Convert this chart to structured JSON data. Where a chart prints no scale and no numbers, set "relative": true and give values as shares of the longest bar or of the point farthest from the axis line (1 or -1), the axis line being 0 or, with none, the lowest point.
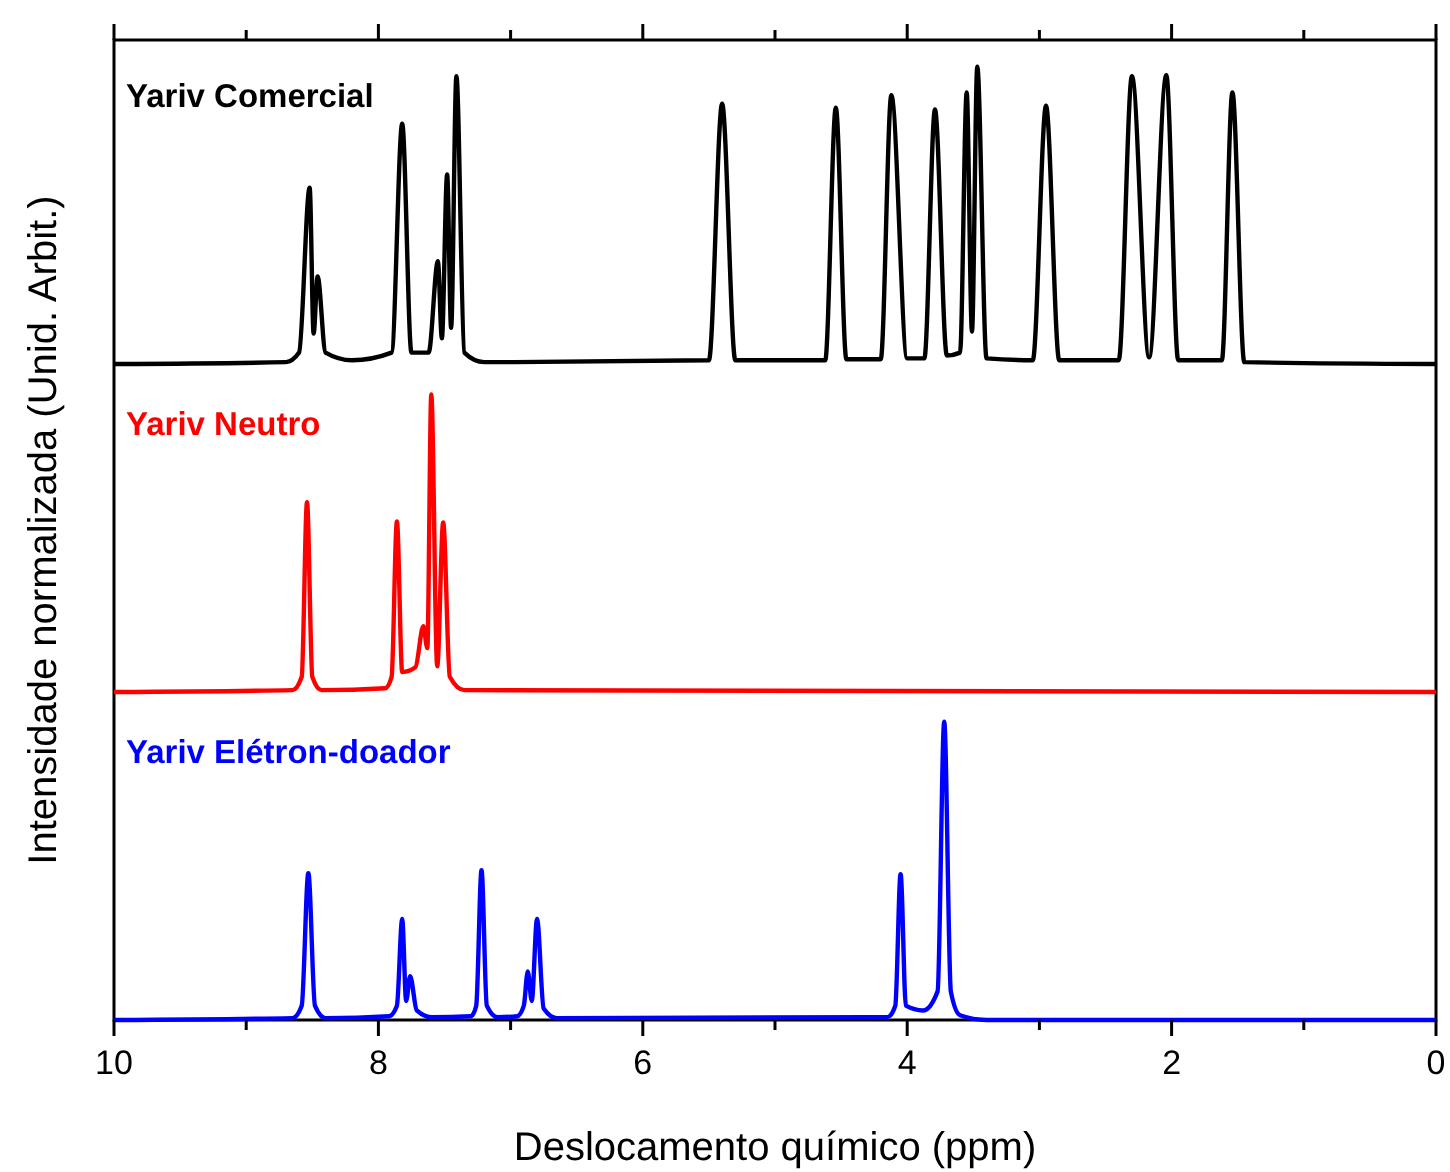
{
  "chart_data": {
    "type": "line",
    "relative": true,
    "xlabel": "Deslocamento químico (ppm)",
    "ylabel": "Intensidade normalizada (Unid. Arbit.)",
    "xlim": [
      10,
      0
    ],
    "xticks": [
      10,
      {
        "value": 9,
        "label": null
      },
      8,
      {
        "value": 7,
        "label": null
      },
      6,
      {
        "value": 5,
        "label": null
      },
      4,
      {
        "value": 3,
        "label": null
      },
      2,
      {
        "value": 1,
        "label": null
      },
      0
    ],
    "line_style": "solid",
    "marker": "none",
    "series": [
      {
        "name": "Yariv Comercial",
        "color": "#000000",
        "x": [
          10,
          8.7,
          8.6,
          8.52,
          8.49,
          8.46,
          8.4,
          8.2,
          7.9,
          7.82,
          7.75,
          7.62,
          7.55,
          7.52,
          7.48,
          7.45,
          7.41,
          7.35,
          7.2,
          5.5,
          5.4,
          5.3,
          4.62,
          4.54,
          4.46,
          4.2,
          4.12,
          4.0,
          3.87,
          3.79,
          3.7,
          3.6,
          3.55,
          3.51,
          3.47,
          3.4,
          3.05,
          2.95,
          2.85,
          2.4,
          2.3,
          2.17,
          2.04,
          1.95,
          1.62,
          1.54,
          1.45,
          0
        ],
        "values": [
          0.688,
          0.69,
          0.7,
          0.873,
          0.72,
          0.78,
          0.7,
          0.692,
          0.7,
          0.94,
          0.7,
          0.7,
          0.796,
          0.715,
          0.887,
          0.726,
          0.99,
          0.7,
          0.69,
          0.692,
          0.961,
          0.692,
          0.692,
          0.957,
          0.693,
          0.693,
          0.97,
          0.694,
          0.694,
          0.955,
          0.697,
          0.7,
          0.973,
          0.722,
          1.0,
          0.694,
          0.692,
          0.959,
          0.692,
          0.692,
          0.99,
          0.695,
          0.991,
          0.692,
          0.692,
          0.973,
          0.69,
          0.688
        ]
      },
      {
        "name": "Yariv Neutro",
        "color": "#ff0000",
        "x": [
          10,
          8.65,
          8.58,
          8.54,
          8.5,
          8.43,
          7.95,
          7.9,
          7.86,
          7.82,
          7.72,
          7.66,
          7.63,
          7.6,
          7.555,
          7.51,
          7.46,
          7.35,
          0
        ],
        "values": [
          0.344,
          0.346,
          0.36,
          0.543,
          0.36,
          0.346,
          0.348,
          0.36,
          0.523,
          0.365,
          0.37,
          0.413,
          0.39,
          0.656,
          0.371,
          0.522,
          0.36,
          0.346,
          0.344
        ]
      },
      {
        "name": "Yariv Elétron-doador",
        "color": "#0000ff",
        "x": [
          10,
          8.65,
          8.58,
          8.53,
          8.48,
          8.4,
          7.92,
          7.86,
          7.82,
          7.79,
          7.76,
          7.71,
          7.6,
          7.3,
          7.26,
          7.22,
          7.18,
          7.1,
          6.95,
          6.9,
          6.87,
          6.84,
          6.8,
          6.75,
          6.65,
          4.15,
          4.09,
          4.05,
          4.01,
          3.88,
          3.77,
          3.72,
          3.67,
          3.6,
          3.4,
          0
        ],
        "values": [
          0,
          0.002,
          0.015,
          0.154,
          0.015,
          0.002,
          0.004,
          0.015,
          0.106,
          0.02,
          0.046,
          0.01,
          0.003,
          0.004,
          0.015,
          0.157,
          0.015,
          0.003,
          0.004,
          0.015,
          0.051,
          0.02,
          0.106,
          0.012,
          0.002,
          0.003,
          0.015,
          0.153,
          0.015,
          0.01,
          0.03,
          0.313,
          0.03,
          0.005,
          0,
          0
        ]
      }
    ]
  }
}
